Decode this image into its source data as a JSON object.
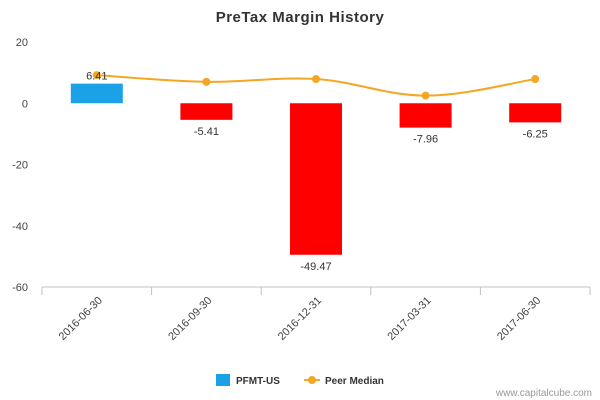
{
  "chart_data": {
    "type": "bar",
    "title": "PreTax Margin History",
    "xlabel": "",
    "ylabel": "",
    "categories": [
      "2016-06-30",
      "2016-09-30",
      "2016-12-31",
      "2017-03-31",
      "2017-06-30"
    ],
    "ylim": [
      -60,
      20
    ],
    "yticks": [
      20,
      0,
      -20,
      -40,
      -60
    ],
    "grid": false,
    "legend_position": "bottom",
    "series": [
      {
        "name": "PFMT-US",
        "type": "bar",
        "values": [
          6.41,
          -5.41,
          -49.47,
          -7.96,
          -6.25
        ],
        "labels": [
          "6.41",
          "-5.41",
          "-49.47",
          "-7.96",
          "-6.25"
        ],
        "color_positive": "#1aa1e6",
        "color_negative": "#ff0000"
      },
      {
        "name": "Peer Median",
        "type": "line",
        "values": [
          9.2,
          7.0,
          7.9,
          2.5,
          7.9
        ],
        "color": "#f5a623"
      }
    ]
  },
  "credit": "www.capitalcube.com"
}
